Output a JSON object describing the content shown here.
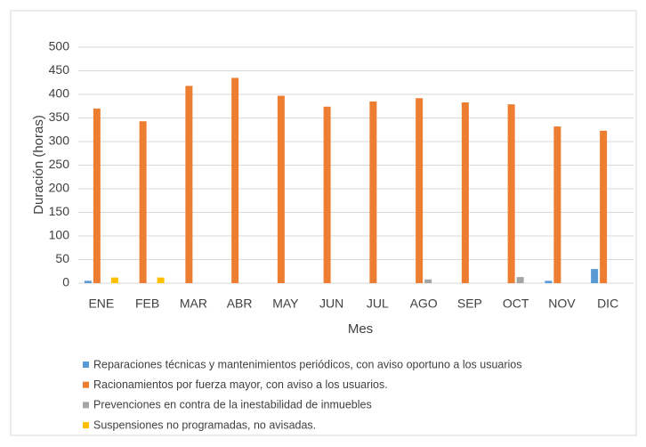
{
  "chart_data": {
    "type": "bar",
    "xlabel": "Mes",
    "ylabel": "Duración (horas)",
    "categories": [
      "ENE",
      "FEB",
      "MAR",
      "ABR",
      "MAY",
      "JUN",
      "JUL",
      "AGO",
      "SEP",
      "OCT",
      "NOV",
      "DIC"
    ],
    "series": [
      {
        "name": "Reparaciones técnicas y mantenimientos periódicos, con aviso oportuno a los usuarios",
        "color": "#5b9bd5",
        "values": [
          5,
          0,
          0,
          0,
          0,
          0,
          0,
          0,
          0,
          0,
          5,
          30
        ]
      },
      {
        "name": "Racionamientos por fuerza mayor, con aviso a los usuarios.",
        "color": "#ed7d31",
        "values": [
          370,
          343,
          418,
          435,
          397,
          374,
          385,
          392,
          383,
          379,
          332,
          323
        ]
      },
      {
        "name": "Prevenciones en contra de la inestabilidad de inmuebles",
        "color": "#a5a5a5",
        "values": [
          0,
          0,
          0,
          0,
          0,
          0,
          0,
          8,
          0,
          13,
          0,
          0
        ]
      },
      {
        "name": "Suspensiones no programadas, no avisadas.",
        "color": "#ffc000",
        "values": [
          12,
          12,
          0,
          0,
          0,
          0,
          0,
          0,
          0,
          0,
          0,
          0
        ]
      }
    ],
    "ylim": [
      0,
      500
    ],
    "yticks": [
      0,
      50,
      100,
      150,
      200,
      250,
      300,
      350,
      400,
      450,
      500
    ],
    "grid": true
  }
}
